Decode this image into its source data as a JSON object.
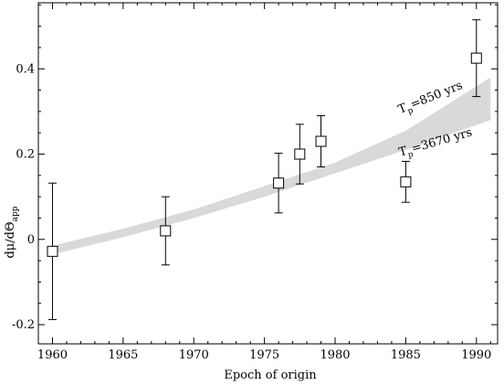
{
  "chart_data": {
    "type": "scatter",
    "title": "",
    "xlabel": "Epoch of origin",
    "ylabel": "dμ/dΘ",
    "ylabel_sub": "app",
    "xlim": [
      1959.0,
      1991.5
    ],
    "ylim": [
      -0.245,
      0.555
    ],
    "x_ticks": [
      1960,
      1965,
      1970,
      1975,
      1980,
      1985,
      1990
    ],
    "y_ticks": [
      -0.2,
      0,
      0.2,
      0.4
    ],
    "y_tick_labels": [
      "-0.2",
      "0",
      "0.2",
      "0.4"
    ],
    "grid": false,
    "points": [
      {
        "x": 1960.0,
        "y": -0.028,
        "err_low": 0.16,
        "err_high": 0.16
      },
      {
        "x": 1968.0,
        "y": 0.02,
        "err_low": 0.08,
        "err_high": 0.08
      },
      {
        "x": 1976.0,
        "y": 0.132,
        "err_low": 0.07,
        "err_high": 0.07
      },
      {
        "x": 1977.5,
        "y": 0.2,
        "err_low": 0.07,
        "err_high": 0.07
      },
      {
        "x": 1979.0,
        "y": 0.23,
        "err_low": 0.06,
        "err_high": 0.06
      },
      {
        "x": 1985.0,
        "y": 0.135,
        "err_low": 0.048,
        "err_high": 0.048
      },
      {
        "x": 1990.0,
        "y": 0.425,
        "err_low": 0.09,
        "err_high": 0.09
      }
    ],
    "band": {
      "upper": [
        [
          1960.0,
          -0.015
        ],
        [
          1965.0,
          0.025
        ],
        [
          1970.0,
          0.07
        ],
        [
          1975.0,
          0.125
        ],
        [
          1980.0,
          0.18
        ],
        [
          1985.0,
          0.255
        ],
        [
          1991.0,
          0.38
        ]
      ],
      "lower": [
        [
          1960.0,
          -0.035
        ],
        [
          1965.0,
          0.005
        ],
        [
          1970.0,
          0.05
        ],
        [
          1975.0,
          0.1
        ],
        [
          1980.0,
          0.155
        ],
        [
          1985.0,
          0.21
        ],
        [
          1991.0,
          0.28
        ]
      ],
      "color": "#d9d9d9"
    },
    "annotations": [
      {
        "main": "T",
        "sub": "p",
        "rest": "=850 yrs",
        "x": 1984.6,
        "y": 0.295,
        "angle": -22
      },
      {
        "main": "T",
        "sub": "p",
        "rest": "=3670 yrs",
        "x": 1984.6,
        "y": 0.195,
        "angle": -16
      }
    ]
  }
}
